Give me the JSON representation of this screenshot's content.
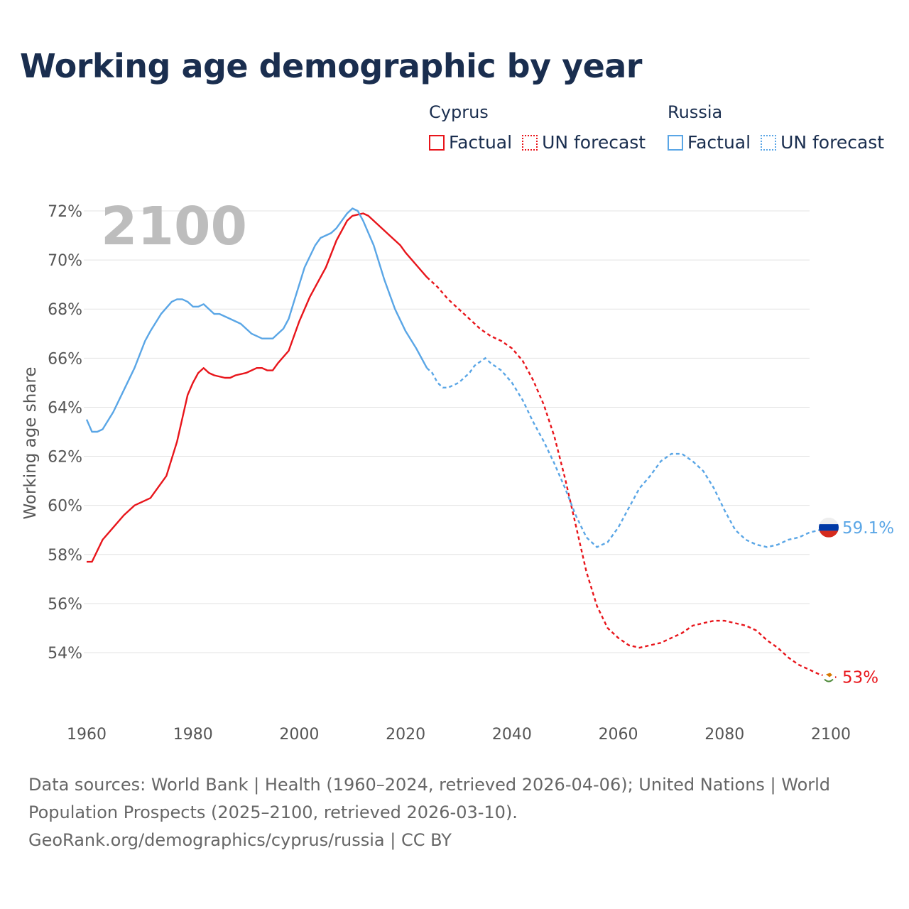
{
  "title": "Working age demographic by year",
  "legend": {
    "groups": [
      {
        "name": "Cyprus",
        "factual_label": "Factual",
        "forecast_label": "UN forecast",
        "color": "#e8151b"
      },
      {
        "name": "Russia",
        "factual_label": "Factual",
        "forecast_label": "UN forecast",
        "color": "#5aa6e6"
      }
    ]
  },
  "chart_data": {
    "type": "line",
    "year_label": "2100",
    "ylabel": "Working age share",
    "xlim": [
      1960,
      2100
    ],
    "ylim": [
      52,
      72.5
    ],
    "x_ticks": [
      "1960",
      "1980",
      "2000",
      "2020",
      "2040",
      "2060",
      "2080",
      "2100"
    ],
    "y_ticks": [
      "54%",
      "56%",
      "58%",
      "60%",
      "62%",
      "64%",
      "66%",
      "68%",
      "70%",
      "72%"
    ],
    "y_tick_values": [
      54,
      56,
      58,
      60,
      62,
      64,
      66,
      68,
      70,
      72
    ],
    "factual_until": 2024,
    "series": [
      {
        "name": "Cyprus",
        "color": "#e8151b",
        "end_label": "53%",
        "points": [
          [
            1960,
            57.7
          ],
          [
            1961,
            57.7
          ],
          [
            1963,
            58.6
          ],
          [
            1965,
            59.1
          ],
          [
            1967,
            59.6
          ],
          [
            1969,
            60.0
          ],
          [
            1972,
            60.3
          ],
          [
            1975,
            61.2
          ],
          [
            1977,
            62.6
          ],
          [
            1979,
            64.5
          ],
          [
            1980,
            65.0
          ],
          [
            1981,
            65.4
          ],
          [
            1982,
            65.6
          ],
          [
            1983,
            65.4
          ],
          [
            1984,
            65.3
          ],
          [
            1986,
            65.2
          ],
          [
            1987,
            65.2
          ],
          [
            1988,
            65.3
          ],
          [
            1990,
            65.4
          ],
          [
            1992,
            65.6
          ],
          [
            1993,
            65.6
          ],
          [
            1994,
            65.5
          ],
          [
            1995,
            65.5
          ],
          [
            1996,
            65.8
          ],
          [
            1998,
            66.3
          ],
          [
            2000,
            67.5
          ],
          [
            2002,
            68.5
          ],
          [
            2003,
            68.9
          ],
          [
            2005,
            69.7
          ],
          [
            2007,
            70.8
          ],
          [
            2009,
            71.6
          ],
          [
            2010,
            71.8
          ],
          [
            2012,
            71.9
          ],
          [
            2013,
            71.8
          ],
          [
            2015,
            71.4
          ],
          [
            2017,
            71.0
          ],
          [
            2019,
            70.6
          ],
          [
            2020,
            70.3
          ],
          [
            2022,
            69.8
          ],
          [
            2024,
            69.3
          ],
          [
            2026,
            68.9
          ],
          [
            2028,
            68.4
          ],
          [
            2030,
            68.0
          ],
          [
            2032,
            67.6
          ],
          [
            2034,
            67.2
          ],
          [
            2036,
            66.9
          ],
          [
            2038,
            66.7
          ],
          [
            2040,
            66.4
          ],
          [
            2042,
            65.9
          ],
          [
            2044,
            65.1
          ],
          [
            2046,
            64.1
          ],
          [
            2048,
            62.8
          ],
          [
            2050,
            61.1
          ],
          [
            2052,
            59.2
          ],
          [
            2054,
            57.3
          ],
          [
            2056,
            55.9
          ],
          [
            2058,
            55.0
          ],
          [
            2060,
            54.6
          ],
          [
            2062,
            54.3
          ],
          [
            2064,
            54.2
          ],
          [
            2066,
            54.3
          ],
          [
            2068,
            54.4
          ],
          [
            2070,
            54.6
          ],
          [
            2072,
            54.8
          ],
          [
            2074,
            55.1
          ],
          [
            2076,
            55.2
          ],
          [
            2078,
            55.3
          ],
          [
            2080,
            55.3
          ],
          [
            2082,
            55.2
          ],
          [
            2084,
            55.1
          ],
          [
            2086,
            54.9
          ],
          [
            2088,
            54.5
          ],
          [
            2090,
            54.2
          ],
          [
            2092,
            53.8
          ],
          [
            2094,
            53.5
          ],
          [
            2096,
            53.3
          ],
          [
            2098,
            53.1
          ],
          [
            2100,
            53.0
          ],
          [
            2101,
            53.0
          ]
        ]
      },
      {
        "name": "Russia",
        "color": "#5aa6e6",
        "end_label": "59.1%",
        "points": [
          [
            1960,
            63.5
          ],
          [
            1961,
            63.0
          ],
          [
            1962,
            63.0
          ],
          [
            1963,
            63.1
          ],
          [
            1965,
            63.8
          ],
          [
            1967,
            64.7
          ],
          [
            1969,
            65.6
          ],
          [
            1971,
            66.7
          ],
          [
            1972,
            67.1
          ],
          [
            1974,
            67.8
          ],
          [
            1976,
            68.3
          ],
          [
            1977,
            68.4
          ],
          [
            1978,
            68.4
          ],
          [
            1979,
            68.3
          ],
          [
            1980,
            68.1
          ],
          [
            1981,
            68.1
          ],
          [
            1982,
            68.2
          ],
          [
            1983,
            68.0
          ],
          [
            1984,
            67.8
          ],
          [
            1985,
            67.8
          ],
          [
            1987,
            67.6
          ],
          [
            1989,
            67.4
          ],
          [
            1991,
            67.0
          ],
          [
            1992,
            66.9
          ],
          [
            1993,
            66.8
          ],
          [
            1995,
            66.8
          ],
          [
            1996,
            67.0
          ],
          [
            1997,
            67.2
          ],
          [
            1998,
            67.6
          ],
          [
            1999,
            68.3
          ],
          [
            2001,
            69.7
          ],
          [
            2003,
            70.6
          ],
          [
            2004,
            70.9
          ],
          [
            2006,
            71.1
          ],
          [
            2007,
            71.3
          ],
          [
            2008,
            71.6
          ],
          [
            2009,
            71.9
          ],
          [
            2010,
            72.1
          ],
          [
            2011,
            72.0
          ],
          [
            2012,
            71.6
          ],
          [
            2014,
            70.6
          ],
          [
            2016,
            69.2
          ],
          [
            2018,
            68.0
          ],
          [
            2020,
            67.1
          ],
          [
            2022,
            66.4
          ],
          [
            2024,
            65.6
          ],
          [
            2025,
            65.4
          ],
          [
            2026,
            65.0
          ],
          [
            2027,
            64.8
          ],
          [
            2028,
            64.8
          ],
          [
            2030,
            65.0
          ],
          [
            2032,
            65.4
          ],
          [
            2033,
            65.7
          ],
          [
            2035,
            66.0
          ],
          [
            2036,
            65.8
          ],
          [
            2038,
            65.5
          ],
          [
            2040,
            65.0
          ],
          [
            2042,
            64.3
          ],
          [
            2044,
            63.4
          ],
          [
            2046,
            62.6
          ],
          [
            2048,
            61.7
          ],
          [
            2050,
            60.7
          ],
          [
            2052,
            59.6
          ],
          [
            2054,
            58.7
          ],
          [
            2056,
            58.3
          ],
          [
            2058,
            58.5
          ],
          [
            2060,
            59.1
          ],
          [
            2062,
            59.9
          ],
          [
            2064,
            60.7
          ],
          [
            2066,
            61.2
          ],
          [
            2068,
            61.8
          ],
          [
            2070,
            62.1
          ],
          [
            2072,
            62.1
          ],
          [
            2074,
            61.8
          ],
          [
            2076,
            61.4
          ],
          [
            2078,
            60.7
          ],
          [
            2080,
            59.8
          ],
          [
            2082,
            59.0
          ],
          [
            2084,
            58.6
          ],
          [
            2086,
            58.4
          ],
          [
            2088,
            58.3
          ],
          [
            2090,
            58.4
          ],
          [
            2092,
            58.6
          ],
          [
            2094,
            58.7
          ],
          [
            2096,
            58.9
          ],
          [
            2098,
            59.0
          ],
          [
            2100,
            59.1
          ],
          [
            2101,
            59.1
          ]
        ]
      }
    ]
  },
  "footer": {
    "line1": "Data sources: World Bank | Health (1960–2024, retrieved 2026-04-06); United Nations | World",
    "line2": "Population Prospects (2025–2100, retrieved 2026-03-10).",
    "line3": "GeoRank.org/demographics/cyprus/russia | CC BY"
  }
}
